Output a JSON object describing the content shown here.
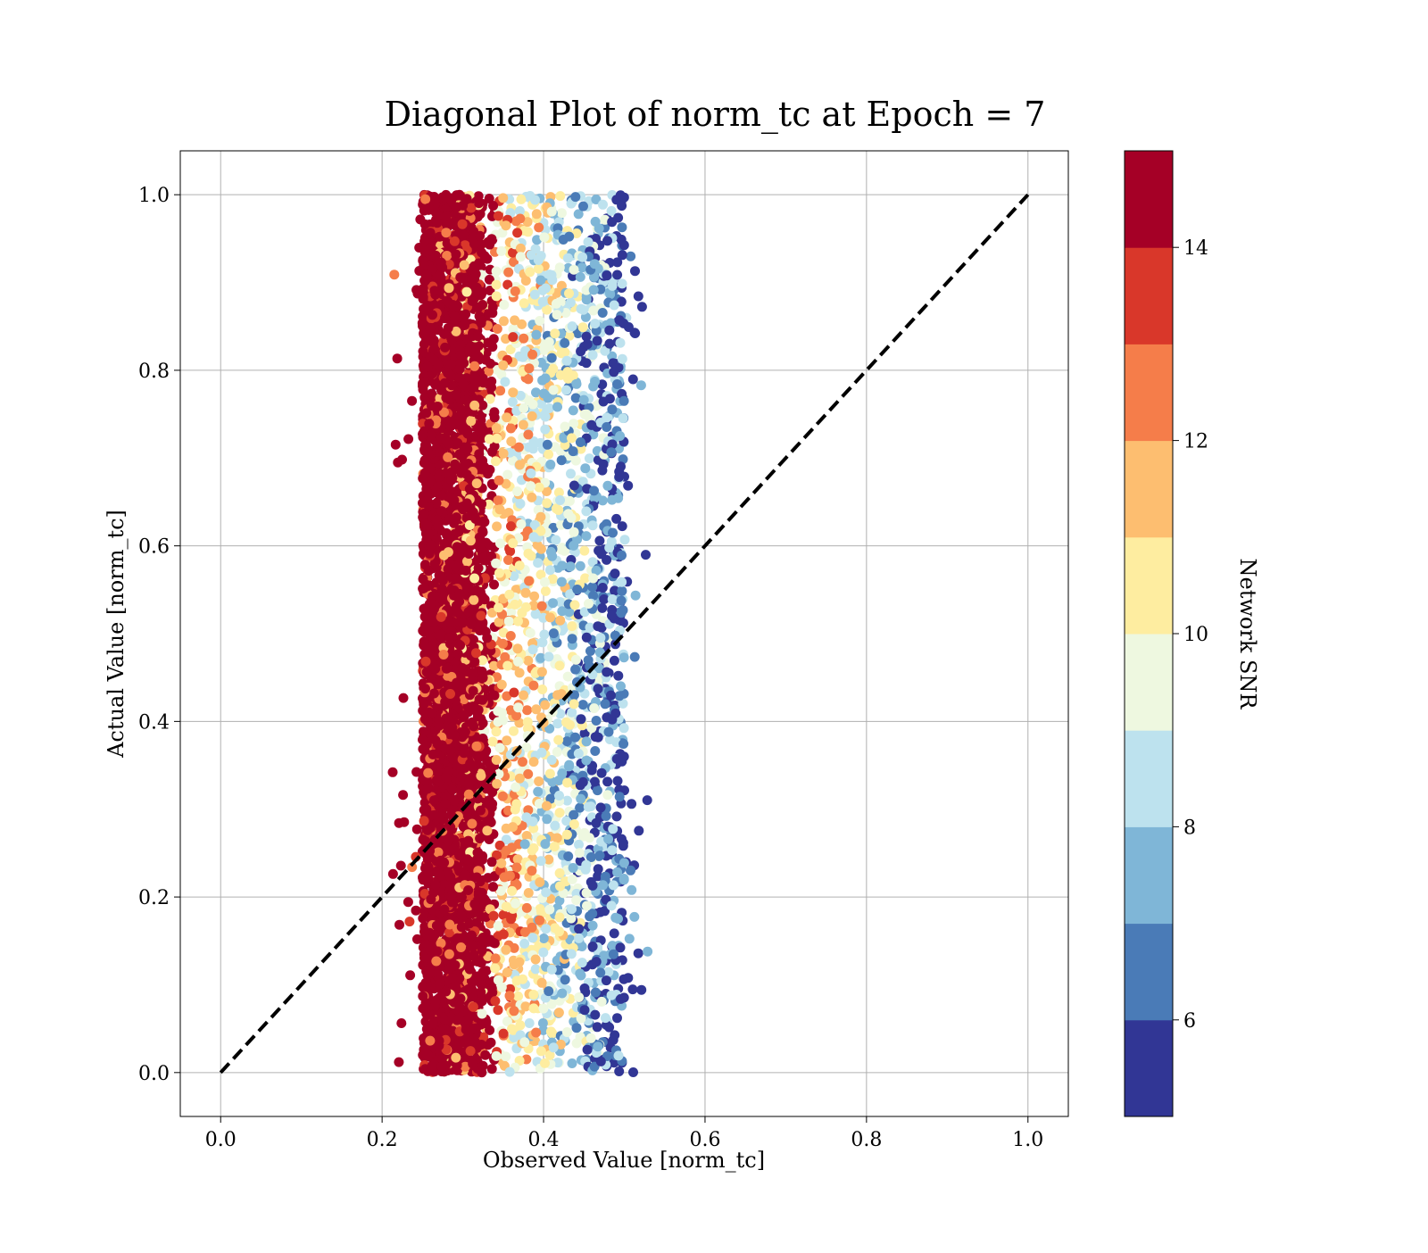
{
  "chart_data": {
    "type": "scatter",
    "title": "Diagonal Plot of norm_tc at Epoch = 7",
    "xlabel": "Observed Value [norm_tc]",
    "ylabel": "Actual Value [norm_tc]",
    "xlim": [
      -0.05,
      1.05
    ],
    "ylim": [
      -0.05,
      1.05
    ],
    "xticks": [
      "0.0",
      "0.2",
      "0.4",
      "0.6",
      "0.8",
      "1.0"
    ],
    "yticks": [
      "0.0",
      "0.2",
      "0.4",
      "0.6",
      "0.8",
      "1.0"
    ],
    "grid": true,
    "diagonal_line": {
      "x": [
        0.0,
        1.0
      ],
      "y": [
        0.0,
        1.0
      ],
      "style": "dashed",
      "color": "#000000"
    },
    "point_cloud": {
      "x_range": [
        0.21,
        0.53
      ],
      "y_range": [
        0.0,
        1.0
      ],
      "dense_core_x": [
        0.25,
        0.35
      ],
      "trend": "color (Network SNR) decreases as Observed Value increases from ~0.25 to ~0.5"
    },
    "colorbar": {
      "label": "Network SNR",
      "range": [
        5,
        15
      ],
      "ticks": [
        "6",
        "8",
        "10",
        "12",
        "14"
      ],
      "bin_edges": [
        5,
        6,
        7,
        8,
        9,
        10,
        11,
        12,
        13,
        14,
        15
      ],
      "colors": [
        "#313695",
        "#4a7bb7",
        "#7fb6d7",
        "#bde2ee",
        "#eef8e0",
        "#feeda0",
        "#fdbe70",
        "#f57d4a",
        "#d9372a",
        "#a50026"
      ]
    }
  }
}
